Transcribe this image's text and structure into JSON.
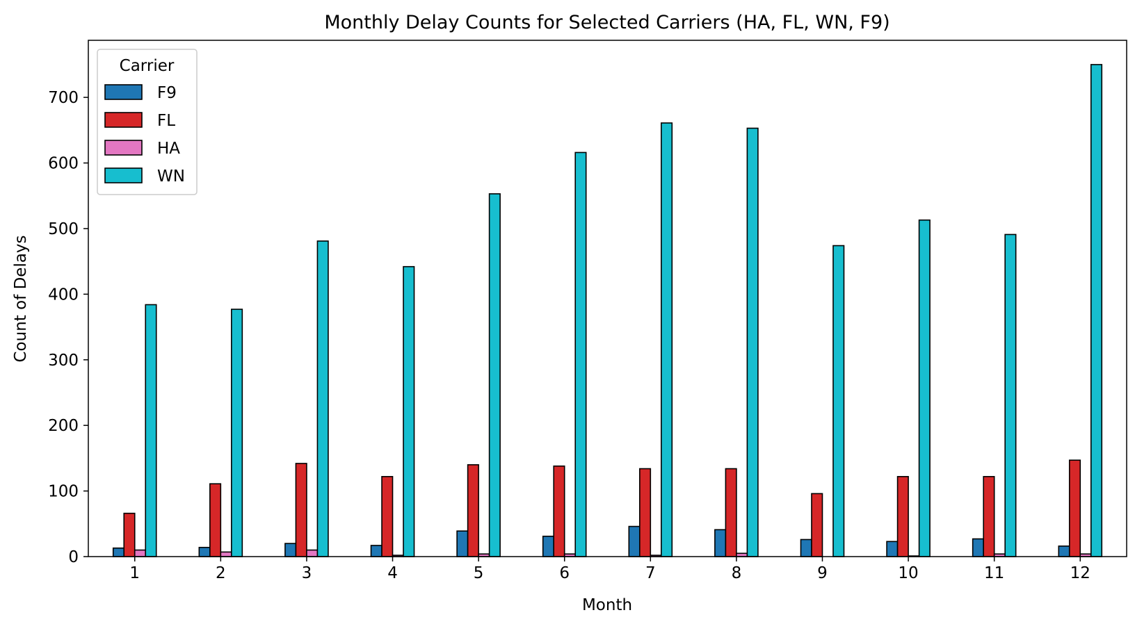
{
  "chart_data": {
    "type": "bar",
    "title": "Monthly Delay Counts for Selected Carriers (HA, FL, WN, F9)",
    "xlabel": "Month",
    "ylabel": "Count of Delays",
    "categories": [
      "1",
      "2",
      "3",
      "4",
      "5",
      "6",
      "7",
      "8",
      "9",
      "10",
      "11",
      "12"
    ],
    "yticks": [
      0,
      100,
      200,
      300,
      400,
      500,
      600,
      700
    ],
    "ylim": [
      0,
      787
    ],
    "grid": false,
    "legend": {
      "title": "Carrier",
      "position": "top-left"
    },
    "series": [
      {
        "name": "F9",
        "color": "#1f77b4",
        "values": [
          13,
          14,
          20,
          17,
          39,
          31,
          46,
          41,
          26,
          23,
          27,
          16
        ]
      },
      {
        "name": "FL",
        "color": "#d62728",
        "values": [
          66,
          111,
          142,
          122,
          140,
          138,
          134,
          134,
          96,
          122,
          122,
          147
        ]
      },
      {
        "name": "HA",
        "color": "#e377c2",
        "values": [
          10,
          7,
          10,
          2,
          4,
          4,
          2,
          5,
          0,
          1,
          4,
          4
        ]
      },
      {
        "name": "WN",
        "color": "#17becf",
        "values": [
          384,
          377,
          481,
          442,
          553,
          616,
          661,
          653,
          474,
          513,
          491,
          750
        ]
      }
    ]
  }
}
